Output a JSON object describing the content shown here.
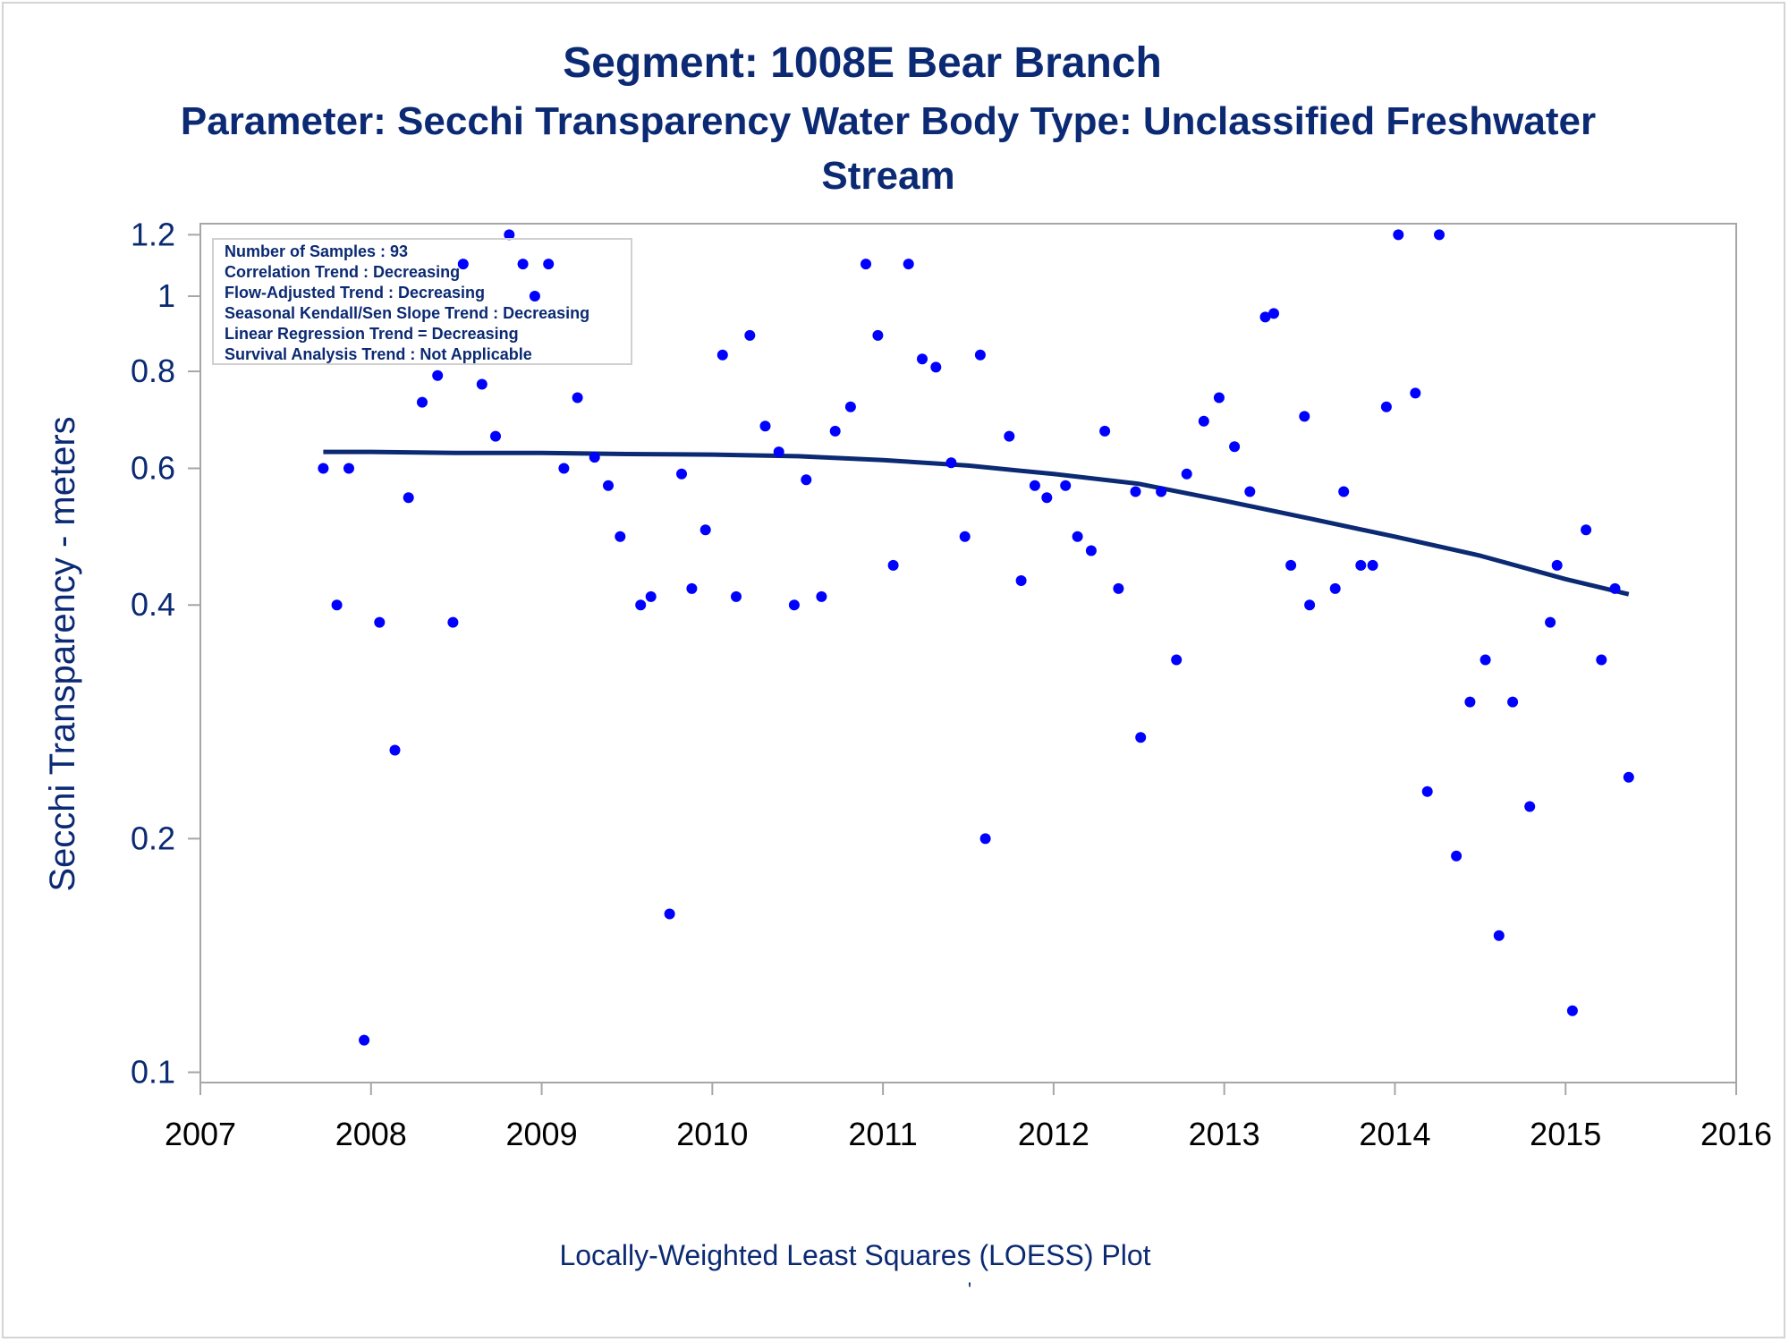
{
  "chart_data": {
    "type": "scatter",
    "title": "Segment: 1008E  Bear Branch",
    "subtitle_line1": "Parameter: Secchi Transparency   Water Body Type: Unclassified Freshwater",
    "subtitle_line2": "Stream",
    "ylabel": "Secchi Transparency - meters",
    "footnote": "Locally-Weighted Least Squares (LOESS) Plot",
    "footnote_mark": "'",
    "y_scale": "log",
    "xlim": [
      2007,
      2016
    ],
    "ylim": [
      0.097,
      1.24
    ],
    "x_ticks": [
      "2007",
      "2008",
      "2009",
      "2010",
      "2011",
      "2012",
      "2013",
      "2014",
      "2015",
      "2016"
    ],
    "y_ticks": [
      {
        "value": 0.1,
        "label": "0.1"
      },
      {
        "value": 0.2,
        "label": "0.2"
      },
      {
        "value": 0.4,
        "label": "0.4"
      },
      {
        "value": 0.6,
        "label": "0.6"
      },
      {
        "value": 0.8,
        "label": "0.8"
      },
      {
        "value": 1.0,
        "label": "1"
      },
      {
        "value": 1.2,
        "label": "1.2"
      }
    ],
    "grid": false,
    "inset_stats": [
      "Number of Samples : 93",
      "Correlation Trend : Decreasing",
      "Flow-Adjusted Trend : Decreasing",
      "Seasonal Kendall/Sen Slope Trend : Decreasing",
      "Linear Regression Trend = Decreasing",
      "Survival Analysis Trend : Not Applicable"
    ],
    "inset_placement": "top-left",
    "colors": {
      "points": "#0000ff",
      "trend": "#0b2a73",
      "text": "#0b2a73",
      "axis": "#a6a6a6"
    },
    "points": [
      {
        "x": 2007.72,
        "y": 0.6
      },
      {
        "x": 2007.8,
        "y": 0.4
      },
      {
        "x": 2007.87,
        "y": 0.6
      },
      {
        "x": 2007.96,
        "y": 0.11
      },
      {
        "x": 2008.05,
        "y": 0.38
      },
      {
        "x": 2008.14,
        "y": 0.26
      },
      {
        "x": 2008.22,
        "y": 0.55
      },
      {
        "x": 2008.3,
        "y": 0.73
      },
      {
        "x": 2008.39,
        "y": 0.79
      },
      {
        "x": 2008.48,
        "y": 0.38
      },
      {
        "x": 2008.54,
        "y": 1.1
      },
      {
        "x": 2008.65,
        "y": 0.77
      },
      {
        "x": 2008.73,
        "y": 0.66
      },
      {
        "x": 2008.81,
        "y": 1.2
      },
      {
        "x": 2008.89,
        "y": 1.1
      },
      {
        "x": 2008.96,
        "y": 1.0
      },
      {
        "x": 2009.04,
        "y": 1.1
      },
      {
        "x": 2009.13,
        "y": 0.6
      },
      {
        "x": 2009.21,
        "y": 0.74
      },
      {
        "x": 2009.31,
        "y": 0.62
      },
      {
        "x": 2009.39,
        "y": 0.57
      },
      {
        "x": 2009.46,
        "y": 0.49
      },
      {
        "x": 2009.58,
        "y": 0.4
      },
      {
        "x": 2009.64,
        "y": 0.41
      },
      {
        "x": 2009.75,
        "y": 0.16
      },
      {
        "x": 2009.82,
        "y": 0.59
      },
      {
        "x": 2009.88,
        "y": 0.42
      },
      {
        "x": 2009.96,
        "y": 0.5
      },
      {
        "x": 2010.06,
        "y": 0.84
      },
      {
        "x": 2010.14,
        "y": 0.41
      },
      {
        "x": 2010.22,
        "y": 0.89
      },
      {
        "x": 2010.31,
        "y": 0.68
      },
      {
        "x": 2010.39,
        "y": 0.63
      },
      {
        "x": 2010.48,
        "y": 0.4
      },
      {
        "x": 2010.55,
        "y": 0.58
      },
      {
        "x": 2010.64,
        "y": 0.41
      },
      {
        "x": 2010.72,
        "y": 0.67
      },
      {
        "x": 2010.81,
        "y": 0.72
      },
      {
        "x": 2010.9,
        "y": 1.1
      },
      {
        "x": 2010.97,
        "y": 0.89
      },
      {
        "x": 2011.06,
        "y": 0.45
      },
      {
        "x": 2011.15,
        "y": 1.1
      },
      {
        "x": 2011.23,
        "y": 0.83
      },
      {
        "x": 2011.31,
        "y": 0.81
      },
      {
        "x": 2011.4,
        "y": 0.61
      },
      {
        "x": 2011.48,
        "y": 0.49
      },
      {
        "x": 2011.57,
        "y": 0.84
      },
      {
        "x": 2011.6,
        "y": 0.2
      },
      {
        "x": 2011.74,
        "y": 0.66
      },
      {
        "x": 2011.81,
        "y": 0.43
      },
      {
        "x": 2011.89,
        "y": 0.57
      },
      {
        "x": 2011.96,
        "y": 0.55
      },
      {
        "x": 2012.07,
        "y": 0.57
      },
      {
        "x": 2012.14,
        "y": 0.49
      },
      {
        "x": 2012.22,
        "y": 0.47
      },
      {
        "x": 2012.3,
        "y": 0.67
      },
      {
        "x": 2012.38,
        "y": 0.42
      },
      {
        "x": 2012.48,
        "y": 0.56
      },
      {
        "x": 2012.51,
        "y": 0.27
      },
      {
        "x": 2012.63,
        "y": 0.56
      },
      {
        "x": 2012.72,
        "y": 0.34
      },
      {
        "x": 2012.78,
        "y": 0.59
      },
      {
        "x": 2012.88,
        "y": 0.69
      },
      {
        "x": 2012.97,
        "y": 0.74
      },
      {
        "x": 2013.06,
        "y": 0.64
      },
      {
        "x": 2013.15,
        "y": 0.56
      },
      {
        "x": 2013.24,
        "y": 0.94
      },
      {
        "x": 2013.29,
        "y": 0.95
      },
      {
        "x": 2013.39,
        "y": 0.45
      },
      {
        "x": 2013.47,
        "y": 0.7
      },
      {
        "x": 2013.5,
        "y": 0.4
      },
      {
        "x": 2013.65,
        "y": 0.42
      },
      {
        "x": 2013.7,
        "y": 0.56
      },
      {
        "x": 2013.8,
        "y": 0.45
      },
      {
        "x": 2013.87,
        "y": 0.45
      },
      {
        "x": 2013.95,
        "y": 0.72
      },
      {
        "x": 2014.02,
        "y": 1.2
      },
      {
        "x": 2014.12,
        "y": 0.75
      },
      {
        "x": 2014.19,
        "y": 0.23
      },
      {
        "x": 2014.26,
        "y": 1.2
      },
      {
        "x": 2014.36,
        "y": 0.19
      },
      {
        "x": 2014.44,
        "y": 0.3
      },
      {
        "x": 2014.53,
        "y": 0.34
      },
      {
        "x": 2014.61,
        "y": 0.15
      },
      {
        "x": 2014.69,
        "y": 0.3
      },
      {
        "x": 2014.79,
        "y": 0.22
      },
      {
        "x": 2014.91,
        "y": 0.38
      },
      {
        "x": 2014.95,
        "y": 0.45
      },
      {
        "x": 2015.04,
        "y": 0.12
      },
      {
        "x": 2015.12,
        "y": 0.5
      },
      {
        "x": 2015.21,
        "y": 0.34
      },
      {
        "x": 2015.29,
        "y": 0.42
      },
      {
        "x": 2015.37,
        "y": 0.24
      }
    ],
    "loess": [
      {
        "x": 2007.72,
        "y": 0.63
      },
      {
        "x": 2008.0,
        "y": 0.63
      },
      {
        "x": 2008.5,
        "y": 0.628
      },
      {
        "x": 2009.0,
        "y": 0.628
      },
      {
        "x": 2009.5,
        "y": 0.626
      },
      {
        "x": 2010.0,
        "y": 0.625
      },
      {
        "x": 2010.5,
        "y": 0.622
      },
      {
        "x": 2011.0,
        "y": 0.615
      },
      {
        "x": 2011.5,
        "y": 0.605
      },
      {
        "x": 2012.0,
        "y": 0.59
      },
      {
        "x": 2012.5,
        "y": 0.573
      },
      {
        "x": 2013.0,
        "y": 0.545
      },
      {
        "x": 2013.5,
        "y": 0.517
      },
      {
        "x": 2014.0,
        "y": 0.49
      },
      {
        "x": 2014.5,
        "y": 0.463
      },
      {
        "x": 2015.0,
        "y": 0.432
      },
      {
        "x": 2015.37,
        "y": 0.413
      }
    ]
  }
}
